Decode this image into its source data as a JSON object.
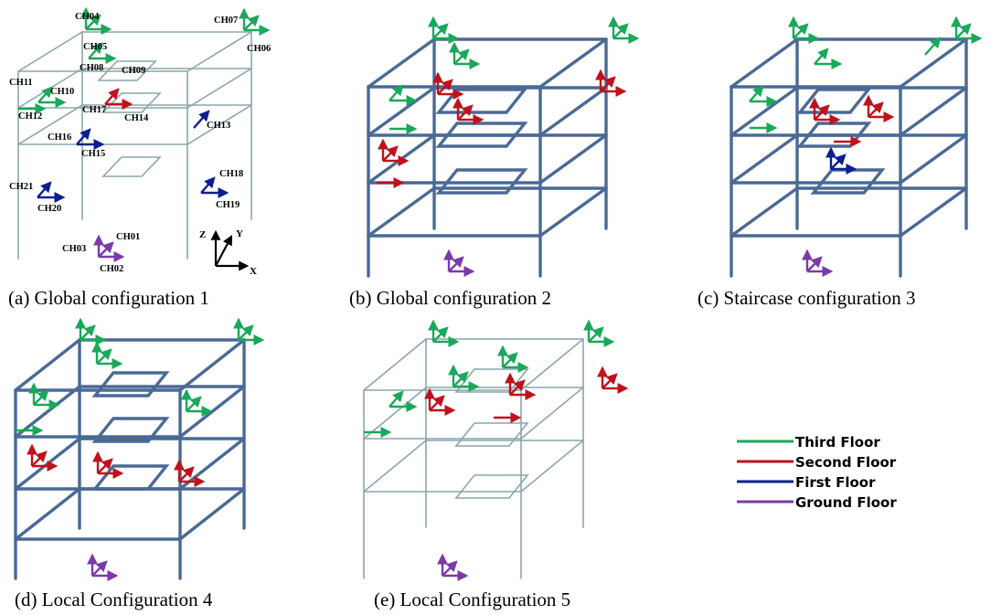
{
  "colors": {
    "third_floor": "#1aa85a",
    "second_floor": "#c0121c",
    "first_floor": "#0b1f8f",
    "ground_floor": "#7a3aa8",
    "frame_thin": "#8aa6a8",
    "frame_thick": "#4a6a95"
  },
  "panels": [
    {
      "id": "a",
      "caption": "(a) Global configuration 1"
    },
    {
      "id": "b",
      "caption": "(b) Global configuration 2"
    },
    {
      "id": "c",
      "caption": "(c) Staircase configuration 3"
    },
    {
      "id": "d",
      "caption": "(d) Local Configuration 4"
    },
    {
      "id": "e",
      "caption": "(e) Local Configuration 5"
    }
  ],
  "channels": {
    "ch04": "CH04",
    "ch05": "CH05",
    "ch07": "CH07",
    "ch06": "CH06",
    "ch08": "CH08",
    "ch09": "CH09",
    "ch11": "CH11",
    "ch10": "CH10",
    "ch12": "CH12",
    "ch17": "CH17",
    "ch14": "CH14",
    "ch13": "CH13",
    "ch16": "CH16",
    "ch15": "CH15",
    "ch18": "CH18",
    "ch21": "CH21",
    "ch19": "CH19",
    "ch20": "CH20",
    "ch01": "CH01",
    "ch03": "CH03",
    "ch02": "CH02"
  },
  "axes": {
    "z": "Z",
    "y": "Y",
    "x": "X"
  },
  "legend": [
    {
      "label": "Third Floor",
      "color_key": "third_floor"
    },
    {
      "label": "Second Floor",
      "color_key": "second_floor"
    },
    {
      "label": "First Floor",
      "color_key": "first_floor"
    },
    {
      "label": "Ground Floor",
      "color_key": "ground_floor"
    }
  ]
}
